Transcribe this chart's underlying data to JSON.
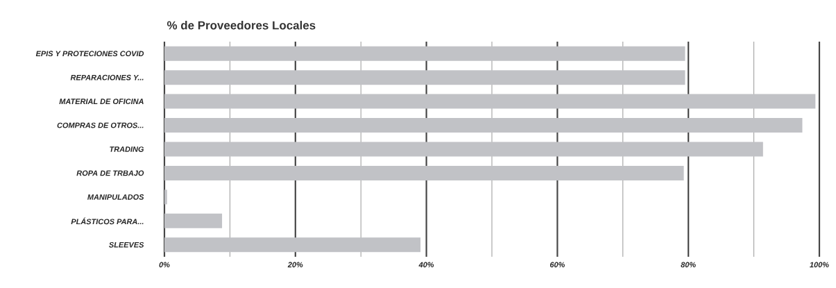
{
  "chart_data": {
    "type": "bar",
    "orientation": "horizontal",
    "title": "% de Proveedores Locales",
    "categories": [
      "EPIS Y PROTECIONES COVID",
      "REPARACIONES Y...",
      "MATERIAL DE OFICINA",
      "COMPRAS DE OTROS...",
      "TRADING",
      "ROPA DE TRBAJO",
      "MANIPULADOS",
      "PLÁSTICOS  PARA...",
      "SLEEVES"
    ],
    "values": [
      79.5,
      79.5,
      99.4,
      97.4,
      91.4,
      79.3,
      0.4,
      8.8,
      39.1
    ],
    "color": "#c1c2c6",
    "xlim": [
      0,
      100
    ],
    "xticks": [
      {
        "value": 0,
        "label": "0%"
      },
      {
        "value": 10,
        "label": null
      },
      {
        "value": 20,
        "label": "20%"
      },
      {
        "value": 30,
        "label": null
      },
      {
        "value": 40,
        "label": "40%"
      },
      {
        "value": 50,
        "label": null
      },
      {
        "value": 60,
        "label": "60%"
      },
      {
        "value": 70,
        "label": null
      },
      {
        "value": 80,
        "label": "80%"
      },
      {
        "value": 90,
        "label": null
      },
      {
        "value": 100,
        "label": "100%"
      }
    ],
    "grid": "x",
    "legend": false
  }
}
